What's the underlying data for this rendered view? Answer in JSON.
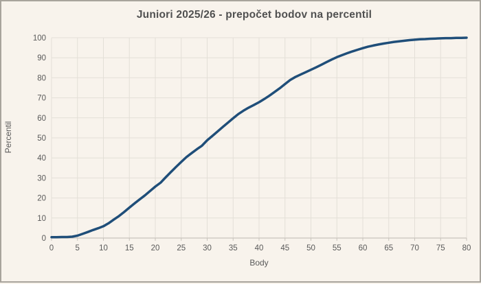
{
  "chart": {
    "title": "Juniori 2025/26 - prepočet bodov na percentil",
    "xlabel": "Body",
    "ylabel": "Percentil"
  },
  "colors": {
    "background": "#f8f3ec",
    "frame_border": "#a8a49c",
    "line": "#1f4e79",
    "gridline": "#e3dfd7",
    "axis_line": "#c7c3bb",
    "tick_text": "#595959",
    "title_text": "#505050"
  },
  "chart_data": {
    "type": "line",
    "title": "Juniori 2025/26 - prepočet bodov na percentil",
    "xlabel": "Body",
    "ylabel": "Percentil",
    "xlim": [
      0,
      80
    ],
    "ylim": [
      0,
      100
    ],
    "x_ticks": [
      0,
      5,
      10,
      15,
      20,
      25,
      30,
      35,
      40,
      45,
      50,
      55,
      60,
      65,
      70,
      75,
      80
    ],
    "y_ticks": [
      0,
      10,
      20,
      30,
      40,
      50,
      60,
      70,
      80,
      90,
      100
    ],
    "grid": true,
    "legend": false,
    "series": [
      {
        "name": "percentil",
        "x": [
          0,
          1,
          2,
          3,
          4,
          5,
          6,
          7,
          8,
          9,
          10,
          11,
          12,
          13,
          14,
          15,
          16,
          17,
          18,
          19,
          20,
          21,
          22,
          23,
          24,
          25,
          26,
          27,
          28,
          29,
          30,
          31,
          32,
          33,
          34,
          35,
          36,
          37,
          38,
          39,
          40,
          41,
          42,
          43,
          44,
          45,
          46,
          47,
          48,
          49,
          50,
          51,
          52,
          53,
          54,
          55,
          56,
          57,
          58,
          59,
          60,
          61,
          62,
          63,
          64,
          65,
          66,
          67,
          68,
          69,
          70,
          71,
          72,
          73,
          74,
          75,
          76,
          77,
          78,
          79,
          80
        ],
        "y": [
          0.4,
          0.4,
          0.5,
          0.5,
          0.7,
          1.2,
          2.1,
          3.0,
          4.0,
          4.9,
          5.9,
          7.4,
          9.2,
          11.0,
          13.0,
          15.2,
          17.3,
          19.3,
          21.3,
          23.5,
          25.7,
          27.6,
          30.3,
          32.9,
          35.5,
          38.0,
          40.4,
          42.4,
          44.3,
          46.1,
          48.8,
          51.0,
          53.2,
          55.4,
          57.6,
          59.8,
          61.9,
          63.6,
          65.1,
          66.4,
          67.8,
          69.4,
          71.1,
          72.9,
          74.8,
          76.9,
          78.9,
          80.4,
          81.6,
          82.8,
          84.0,
          85.2,
          86.5,
          87.8,
          89.1,
          90.3,
          91.3,
          92.3,
          93.2,
          94.0,
          94.8,
          95.5,
          96.1,
          96.6,
          97.1,
          97.5,
          97.9,
          98.2,
          98.5,
          98.8,
          99.0,
          99.2,
          99.3,
          99.5,
          99.6,
          99.7,
          99.8,
          99.8,
          99.9,
          99.9,
          100.0
        ]
      }
    ]
  }
}
